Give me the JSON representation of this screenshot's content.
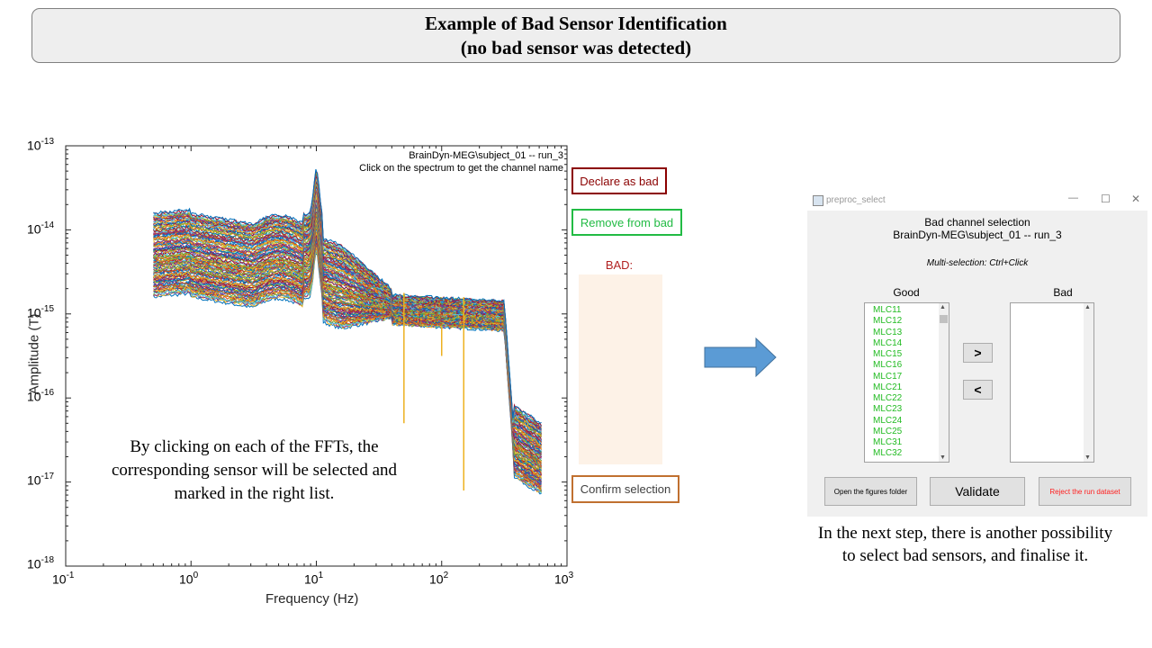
{
  "header": {
    "line1": "Example of Bad Sensor Identification",
    "line2": "(no bad sensor was detected)"
  },
  "plot": {
    "info_line1": "BrainDyn-MEG\\subject_01 --  run_3",
    "info_line2": "Click on the spectrum to get the channel name",
    "xlabel": "Frequency (Hz)",
    "ylabel": "Amplitude (T)",
    "x_ticks": [
      {
        "base": "10",
        "exp": "-1"
      },
      {
        "base": "10",
        "exp": "0"
      },
      {
        "base": "10",
        "exp": "1"
      },
      {
        "base": "10",
        "exp": "2"
      },
      {
        "base": "10",
        "exp": "3"
      }
    ],
    "y_ticks": [
      {
        "base": "10",
        "exp": "-13"
      },
      {
        "base": "10",
        "exp": "-14"
      },
      {
        "base": "10",
        "exp": "-15"
      },
      {
        "base": "10",
        "exp": "-16"
      },
      {
        "base": "10",
        "exp": "-17"
      },
      {
        "base": "10",
        "exp": "-18"
      }
    ],
    "line_colors": [
      "#0072bd",
      "#d95319",
      "#edb120",
      "#7e2f8e",
      "#77ac30",
      "#4dbeee",
      "#a2142f"
    ]
  },
  "side_panel": {
    "declare_bad_label": "Declare as bad",
    "declare_bad_color": "#8b0000",
    "remove_bad_label": "Remove from bad",
    "remove_bad_color": "#22bb44",
    "bad_title": "BAD:",
    "confirm_label": "Confirm selection",
    "confirm_color": "#c07030"
  },
  "captions": {
    "left": "By clicking on each of the FFTs, the corresponding  sensor will be selected and marked  in the right list.",
    "right": "In the next step, there is another possibility to select bad sensors, and finalise it."
  },
  "dialog": {
    "window_title": "preproc_select",
    "heading": "Bad channel selection",
    "subheading": "BrainDyn-MEG\\subject_01 -- run_3",
    "hint": "Multi-selection: Ctrl+Click",
    "good_label": "Good",
    "bad_label": "Bad",
    "good_items": [
      "MLC11",
      "MLC12",
      "MLC13",
      "MLC14",
      "MLC15",
      "MLC16",
      "MLC17",
      "MLC21",
      "MLC22",
      "MLC23",
      "MLC24",
      "MLC25",
      "MLC31",
      "MLC32"
    ],
    "move_right": ">",
    "move_left": "<",
    "open_folder_label": "Open the figures folder",
    "validate_label": "Validate",
    "reject_label": "Reject the run dataset",
    "reject_color": "#ff2020",
    "minimize_glyph": "—",
    "maximize_glyph": "☐",
    "close_glyph": "✕"
  }
}
